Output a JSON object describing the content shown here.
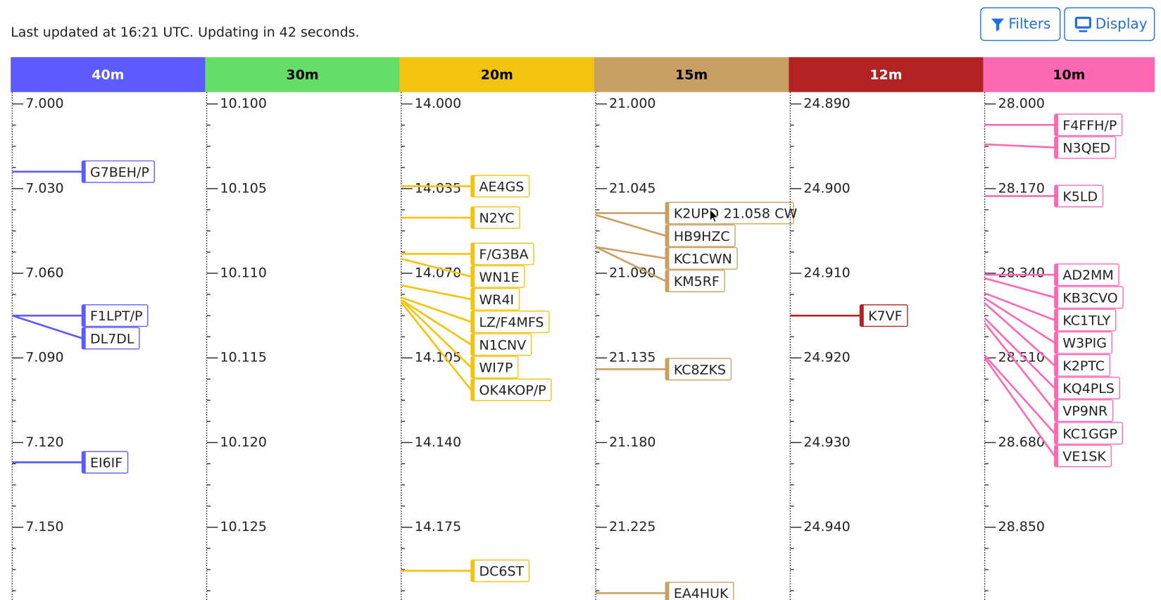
{
  "status": "Last updated at 16:21 UTC. Updating in 42 seconds.",
  "buttons": [
    "Filters",
    "Display"
  ],
  "bands": [
    {
      "name": "40m",
      "color": "#5b5bff",
      "text_color": "#ffffff",
      "ticks": [
        {
          "value": 7.0,
          "label": "7.000"
        },
        {
          "value": 7.03,
          "label": "7.030"
        },
        {
          "value": 7.06,
          "label": "7.060"
        },
        {
          "value": 7.09,
          "label": "7.090"
        },
        {
          "value": 7.12,
          "label": "7.120"
        },
        {
          "value": 7.15,
          "label": "7.150"
        }
      ],
      "spots": [
        {
          "call": "G7BEH/P",
          "freq": 7.024
        },
        {
          "call": "F1LPT/P",
          "freq": 7.075
        },
        {
          "call": "DL7DL",
          "freq": 7.075
        },
        {
          "call": "EI6IF",
          "freq": 7.127
        }
      ]
    },
    {
      "name": "30m",
      "color": "#66dd66",
      "text_color": "#000000",
      "ticks": [
        {
          "value": 10.1,
          "label": "10.100"
        },
        {
          "value": 10.105,
          "label": "10.105"
        },
        {
          "value": 10.11,
          "label": "10.110"
        },
        {
          "value": 10.115,
          "label": "10.115"
        },
        {
          "value": 10.12,
          "label": "10.120"
        },
        {
          "value": 10.125,
          "label": "10.125"
        }
      ],
      "spots": []
    },
    {
      "name": "20m",
      "color": "#f2c40f",
      "text_color": "#000000",
      "ticks": [
        {
          "value": 14.0,
          "label": "14.000"
        },
        {
          "value": 14.035,
          "label": "14.035"
        },
        {
          "value": 14.07,
          "label": "14.070"
        },
        {
          "value": 14.105,
          "label": "14.105"
        },
        {
          "value": 14.14,
          "label": "14.140"
        },
        {
          "value": 14.175,
          "label": "14.175"
        }
      ],
      "spots": [
        {
          "call": "AE4GS",
          "freq": 14.034
        },
        {
          "call": "N2YC",
          "freq": 14.047
        },
        {
          "call": "F/G3BA",
          "freq": 14.062
        },
        {
          "call": "WN1E",
          "freq": 14.064
        },
        {
          "call": "WR4I",
          "freq": 14.075
        },
        {
          "call": "LZ/F4MFS",
          "freq": 14.08
        },
        {
          "call": "N1CNV",
          "freq": 14.081
        },
        {
          "call": "WI7P",
          "freq": 14.081
        },
        {
          "call": "OK4KOP/P",
          "freq": 14.082
        },
        {
          "call": "DC6ST",
          "freq": 14.193
        }
      ]
    },
    {
      "name": "15m",
      "color": "#c9a063",
      "text_color": "#000000",
      "ticks": [
        {
          "value": 21.0,
          "label": "21.000"
        },
        {
          "value": 21.045,
          "label": "21.045"
        },
        {
          "value": 21.09,
          "label": "21.090"
        },
        {
          "value": 21.135,
          "label": "21.135"
        },
        {
          "value": 21.18,
          "label": "21.180"
        },
        {
          "value": 21.225,
          "label": "21.225"
        }
      ],
      "spots": [
        {
          "call": "K2UPD",
          "freq": 21.058,
          "mode": "CW"
        },
        {
          "call": "HB9HZC",
          "freq": 21.059
        },
        {
          "call": "KC1CWN",
          "freq": 21.076
        },
        {
          "call": "KM5RF",
          "freq": 21.076
        },
        {
          "call": "KC8ZKS",
          "freq": 21.141
        },
        {
          "call": "EA4HUK",
          "freq": 21.26
        }
      ]
    },
    {
      "name": "12m",
      "color": "#b22222",
      "text_color": "#ffffff",
      "ticks": [
        {
          "value": 24.89,
          "label": "24.890"
        },
        {
          "value": 24.9,
          "label": "24.900"
        },
        {
          "value": 24.91,
          "label": "24.910"
        },
        {
          "value": 24.92,
          "label": "24.920"
        },
        {
          "value": 24.93,
          "label": "24.930"
        },
        {
          "value": 24.94,
          "label": "24.940"
        }
      ],
      "spots": [
        {
          "call": "K7VF",
          "freq": 24.915
        }
      ]
    },
    {
      "name": "10m",
      "color": "#ff69b4",
      "text_color": "#000000",
      "ticks": [
        {
          "value": 28.0,
          "label": "28.000"
        },
        {
          "value": 28.17,
          "label": "28.170"
        },
        {
          "value": 28.34,
          "label": "28.340"
        },
        {
          "value": 28.51,
          "label": "28.510"
        },
        {
          "value": 28.68,
          "label": "28.680"
        },
        {
          "value": 28.85,
          "label": "28.850"
        }
      ],
      "spots": [
        {
          "call": "F4FFH/P",
          "freq": 28.042
        },
        {
          "call": "N3QED",
          "freq": 28.081
        },
        {
          "call": "K5LD",
          "freq": 28.185
        },
        {
          "call": "AD2MM",
          "freq": 28.343
        },
        {
          "call": "KB3CVO",
          "freq": 28.35
        },
        {
          "call": "KC1TLY",
          "freq": 28.38
        },
        {
          "call": "W3PIG",
          "freq": 28.39
        },
        {
          "call": "K2PTC",
          "freq": 28.4
        },
        {
          "call": "KQ4PLS",
          "freq": 28.43
        },
        {
          "call": "VP9NR",
          "freq": 28.44
        },
        {
          "call": "KC1GGP",
          "freq": 28.505
        },
        {
          "call": "VE1SK",
          "freq": 28.51
        }
      ]
    }
  ]
}
